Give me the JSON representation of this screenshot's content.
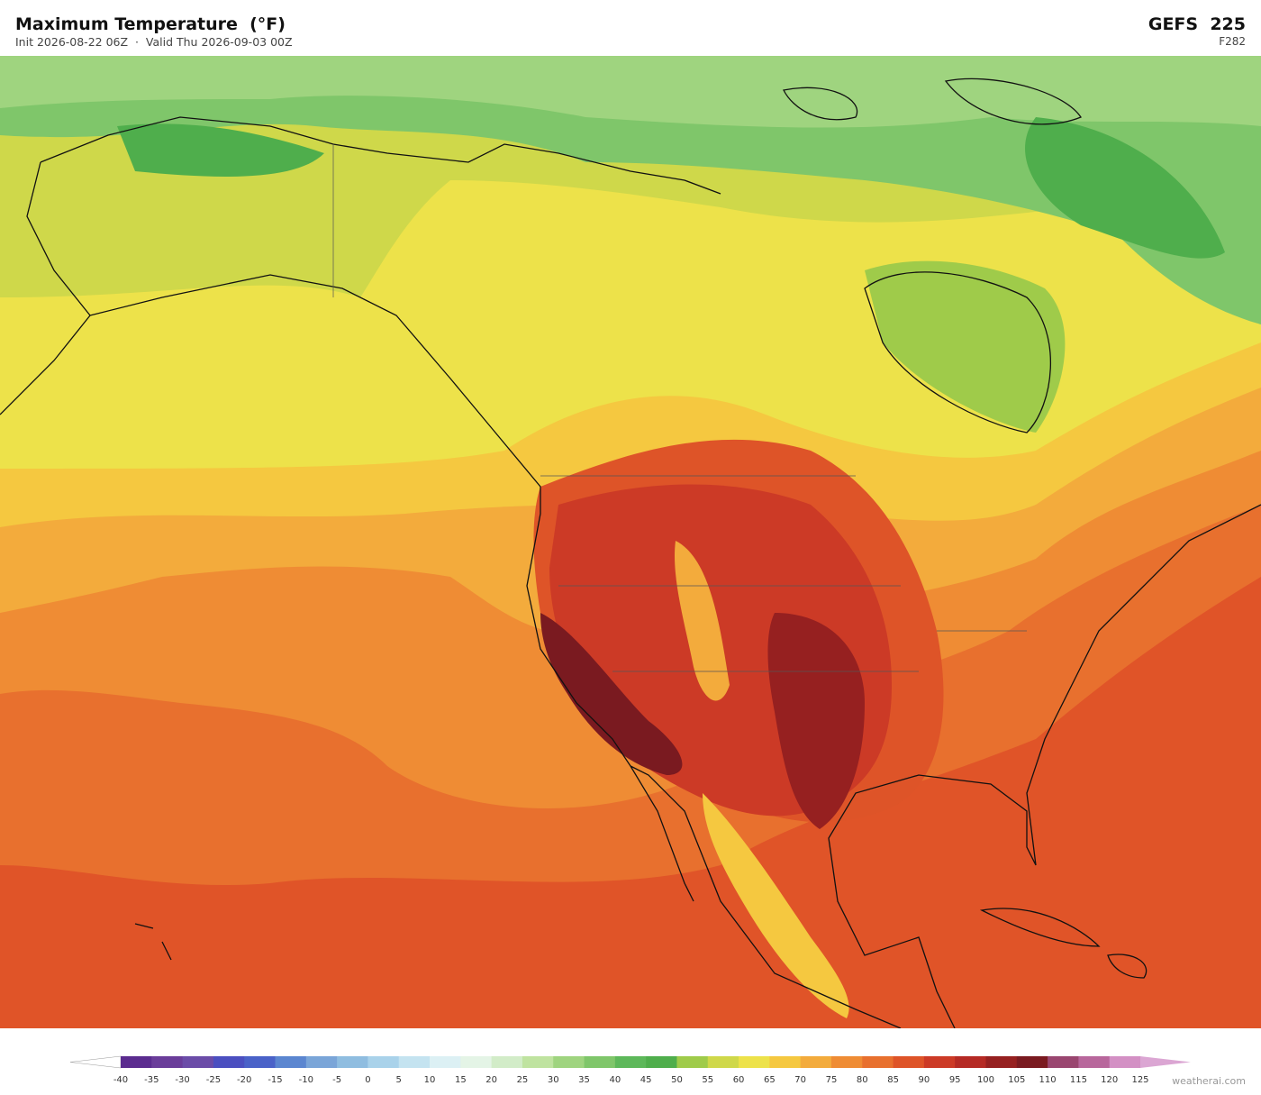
{
  "header": {
    "title": "Maximum Temperature  (°F)",
    "subtitle": "Init 2026-08-22 06Z  ·  Valid Thu 2026-09-03 00Z",
    "model": "GEFS  225",
    "forecast_hour": "F282"
  },
  "colorbar": {
    "ticks": [
      -40,
      -35,
      -30,
      -25,
      -20,
      -15,
      -10,
      -5,
      0,
      5,
      10,
      15,
      20,
      25,
      30,
      35,
      40,
      45,
      50,
      55,
      60,
      65,
      70,
      75,
      80,
      85,
      90,
      95,
      100,
      105,
      110,
      115,
      120,
      125
    ],
    "colors": [
      "#5b2c8f",
      "#6a3d9a",
      "#6b4ca8",
      "#4b4fc0",
      "#4a62c8",
      "#5b86d0",
      "#7aa5d8",
      "#8fbde0",
      "#a9d2ea",
      "#c4e3f0",
      "#dcf0f4",
      "#e4f4e6",
      "#d2ecc8",
      "#bfe3a0",
      "#9fd47f",
      "#7fc66a",
      "#5db85a",
      "#4fae4c",
      "#9fcb4a",
      "#cfd84a",
      "#ede24a",
      "#f5c840",
      "#f3ab3c",
      "#ef8c34",
      "#e8702e",
      "#de5428",
      "#cc3a26",
      "#b52a24",
      "#962020",
      "#7a1a20",
      "#9a4670",
      "#b8679c",
      "#d390c4"
    ],
    "under_color": "#ffffff",
    "over_color": "#dba6d3"
  },
  "footer": {
    "credit": "weatherai.com"
  }
}
